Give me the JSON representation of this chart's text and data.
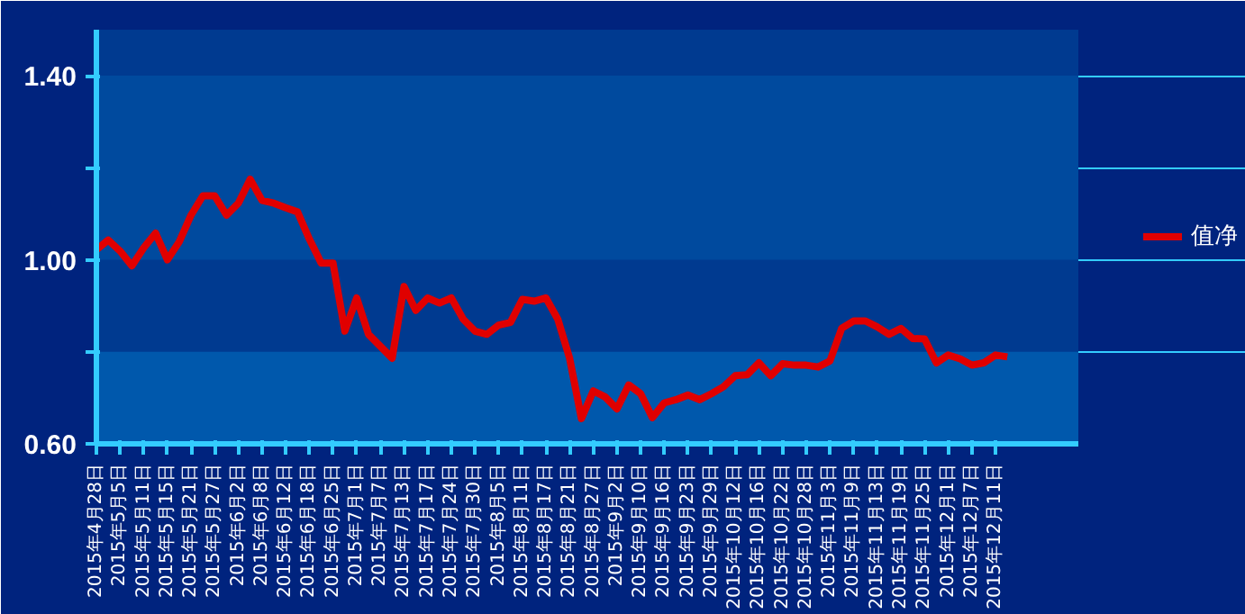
{
  "chart_data": {
    "type": "line",
    "categories": [
      "2015年4月28日",
      null,
      "2015年5月5日",
      null,
      "2015年5月11日",
      null,
      "2015年5月15日",
      null,
      "2015年5月21日",
      null,
      "2015年5月27日",
      null,
      "2015年6月2日",
      null,
      "2015年6月8日",
      null,
      "2015年6月12日",
      null,
      "2015年6月18日",
      null,
      "2015年6月25日",
      null,
      "2015年7月1日",
      null,
      "2015年7月7日",
      null,
      "2015年7月13日",
      null,
      "2015年7月17日",
      null,
      "2015年7月24日",
      null,
      "2015年7月30日",
      null,
      "2015年8月5日",
      null,
      "2015年8月11日",
      null,
      "2015年8月17日",
      null,
      "2015年8月21日",
      null,
      "2015年8月27日",
      null,
      "2015年9月2日",
      null,
      "2015年9月10日",
      null,
      "2015年9月16日",
      null,
      "2015年9月23日",
      null,
      "2015年9月29日",
      null,
      "2015年10月12日",
      null,
      "2015年10月16日",
      null,
      "2015年10月22日",
      null,
      "2015年10月28日",
      null,
      "2015年11月3日",
      null,
      "2015年11月9日",
      null,
      "2015年11月13日",
      null,
      "2015年11月19日",
      null,
      "2015年11月25日",
      null,
      "2015年12月1日",
      null,
      "2015年12月7日",
      null,
      "2015年12月11日",
      null,
      null,
      null,
      null,
      null,
      null,
      null
    ],
    "series": [
      {
        "name": "值净",
        "color": "#e00000",
        "values": [
          1.022,
          1.043,
          1.019,
          0.987,
          1.026,
          1.058,
          1.0,
          1.039,
          1.097,
          1.139,
          1.139,
          1.097,
          1.123,
          1.175,
          1.129,
          1.123,
          1.113,
          1.104,
          1.045,
          0.993,
          0.993,
          0.845,
          0.917,
          0.838,
          0.812,
          0.786,
          0.942,
          0.89,
          0.917,
          0.906,
          0.917,
          0.871,
          0.845,
          0.838,
          0.858,
          0.864,
          0.914,
          0.91,
          0.917,
          0.871,
          0.786,
          0.655,
          0.715,
          0.702,
          0.676,
          0.728,
          0.709,
          0.657,
          0.689,
          0.696,
          0.706,
          0.696,
          0.709,
          0.724,
          0.748,
          0.75,
          0.776,
          0.748,
          0.774,
          0.771,
          0.771,
          0.767,
          0.78,
          0.851,
          0.867,
          0.867,
          0.854,
          0.838,
          0.851,
          0.829,
          0.828,
          0.776,
          0.793,
          0.785,
          0.771,
          0.776,
          0.793,
          0.789,
          null,
          null,
          null,
          null,
          null,
          null
        ]
      }
    ],
    "ylim": [
      0.6,
      1.5
    ],
    "yticks": [
      {
        "value": 0.6,
        "label": "0.60"
      },
      {
        "value": 0.8,
        "label": null
      },
      {
        "value": 1.0,
        "label": "1.00"
      },
      {
        "value": 1.2,
        "label": null
      },
      {
        "value": 1.4,
        "label": "1.40"
      }
    ],
    "bands": [
      {
        "axis": "y",
        "from": 0.6,
        "to": 0.8,
        "color": "#0058ac"
      },
      {
        "axis": "y",
        "from": 1.0,
        "to": 1.4,
        "color": "#004a9e"
      }
    ],
    "grid": "y",
    "legend": "right",
    "marker": "none",
    "line_style": "solid"
  }
}
